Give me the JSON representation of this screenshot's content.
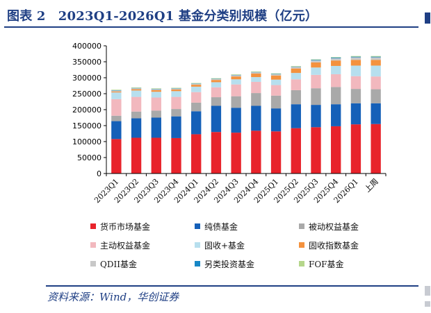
{
  "title": "图表 2　2023Q1-2026Q1 基金分类别规模（亿元）",
  "source": "资料来源：Wind，华创证券",
  "chart_data": {
    "type": "bar",
    "stacked": true,
    "title": "",
    "xlabel": "",
    "ylabel": "",
    "ylim": [
      0,
      400000
    ],
    "yticks": [
      0,
      50000,
      100000,
      150000,
      200000,
      250000,
      300000,
      350000,
      400000
    ],
    "ytick_labels": [
      "0",
      "50000",
      "100000",
      "150000",
      "200000",
      "250000",
      "300000",
      "350000",
      "400000"
    ],
    "grid": false,
    "legend_position": "bottom",
    "categories": [
      "2023Q1",
      "2023Q2",
      "2023Q3",
      "2023Q4",
      "2024Q1",
      "2024Q2",
      "2024Q3",
      "2024Q4",
      "2025Q1",
      "2025Q2",
      "2025Q3",
      "2025Q4",
      "2026Q1",
      "上周"
    ],
    "series": [
      {
        "name": "货币市场基金",
        "color": "#e8232b",
        "values": [
          108000,
          112000,
          112000,
          111000,
          123000,
          130000,
          128000,
          134000,
          132000,
          142000,
          145000,
          148000,
          154000,
          155000
        ]
      },
      {
        "name": "纯债基金",
        "color": "#1560b8",
        "values": [
          56000,
          61000,
          63000,
          68000,
          72000,
          82000,
          78000,
          78000,
          72000,
          75000,
          70000,
          69000,
          66000,
          65000
        ]
      },
      {
        "name": "被动权益基金",
        "color": "#a9a9a9",
        "values": [
          17000,
          21000,
          22000,
          23000,
          27000,
          27000,
          36000,
          40000,
          40000,
          44000,
          52000,
          54000,
          45000,
          44000
        ]
      },
      {
        "name": "主动权益基金",
        "color": "#f2b8be",
        "values": [
          52000,
          46000,
          41000,
          38000,
          33000,
          31000,
          37000,
          35000,
          33000,
          34000,
          42000,
          40000,
          40000,
          40000
        ]
      },
      {
        "name": "固收+基金",
        "color": "#b7dfee",
        "values": [
          21000,
          20000,
          18000,
          18000,
          17000,
          16000,
          16000,
          15000,
          17000,
          20000,
          23000,
          26000,
          33000,
          34000
        ]
      },
      {
        "name": "固收指数基金",
        "color": "#f4923e",
        "values": [
          3000,
          4000,
          5000,
          5000,
          6000,
          7000,
          9000,
          11000,
          13000,
          14000,
          16000,
          17000,
          18000,
          18000
        ]
      },
      {
        "name": "QDII基金",
        "color": "#c8c8c8",
        "values": [
          3000,
          3000,
          3000,
          3000,
          3000,
          3000,
          4000,
          4000,
          4000,
          5000,
          6000,
          7000,
          8000,
          8000
        ]
      },
      {
        "name": "另类投资基金",
        "color": "#1787c6",
        "values": [
          1000,
          1000,
          1000,
          1000,
          1000,
          1000,
          1000,
          1000,
          1000,
          1000,
          2000,
          2000,
          2000,
          2000
        ]
      },
      {
        "name": "FOF基金",
        "color": "#b5d68b",
        "values": [
          1500,
          1500,
          1500,
          1500,
          1500,
          1500,
          1500,
          1500,
          1500,
          1500,
          1500,
          1500,
          2000,
          2000
        ]
      }
    ]
  }
}
